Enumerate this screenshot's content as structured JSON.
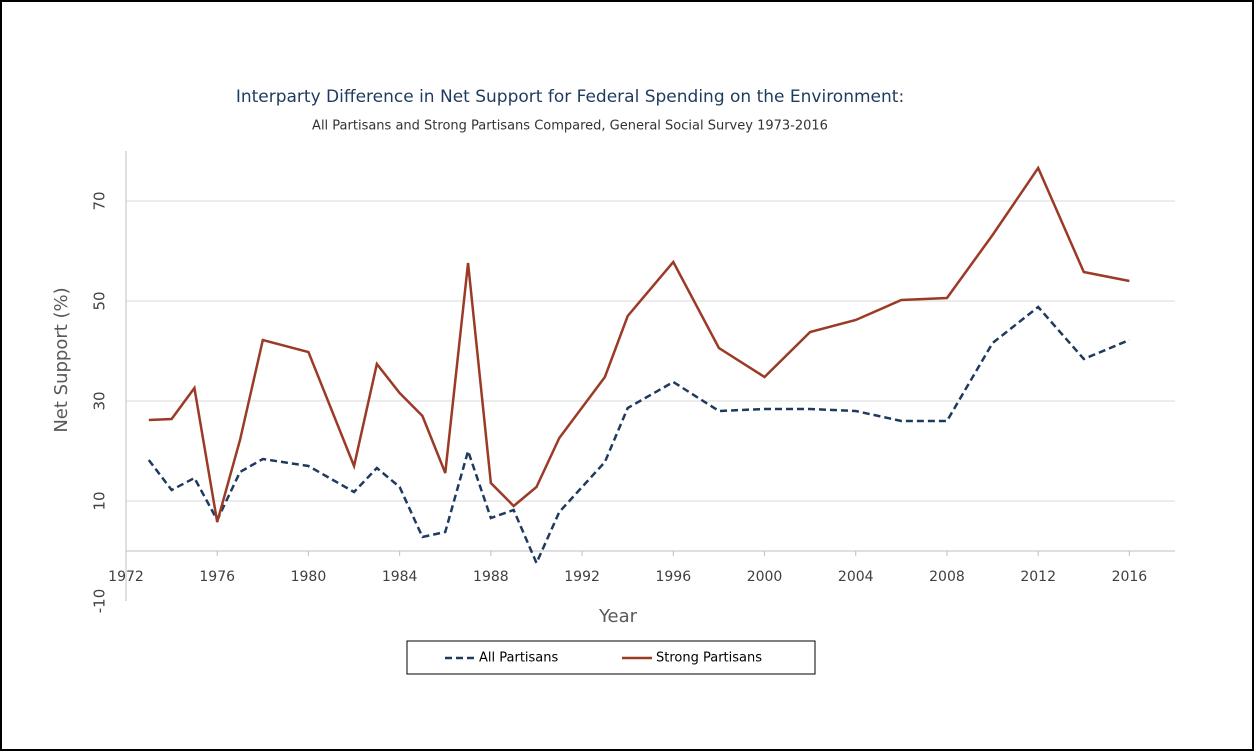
{
  "chart_data": {
    "type": "line",
    "title": "Interparty Difference in Net Support for Federal Spending on the Environment:",
    "subtitle": "All Partisans and Strong Partisans Compared, General Social Survey 1973-2016",
    "x_label": "Year",
    "y_label": "Net Support (%)",
    "x": [
      1973,
      1974,
      1975,
      1976,
      1977,
      1978,
      1980,
      1982,
      1983,
      1984,
      1985,
      1986,
      1987,
      1988,
      1989,
      1990,
      1991,
      1993,
      1994,
      1996,
      1998,
      2000,
      2002,
      2004,
      2006,
      2008,
      2010,
      2012,
      2014,
      2016
    ],
    "series": [
      {
        "name": "All Partisans",
        "color": "#1f3a5f",
        "dashed": true,
        "values": [
          18.2,
          12.2,
          14.6,
          6.2,
          15.8,
          18.4,
          17,
          11.8,
          16.6,
          12.8,
          2.8,
          3.8,
          20,
          6.6,
          8.2,
          -2.4,
          7.8,
          17.8,
          28.6,
          33.8,
          28,
          28.4,
          28.4,
          28,
          26,
          26,
          41.6,
          48.8,
          38.4,
          42.2
        ]
      },
      {
        "name": "Strong Partisans",
        "color": "#9b3a26",
        "dashed": false,
        "values": [
          26.2,
          26.4,
          32.6,
          5.8,
          22.2,
          42.2,
          39.8,
          17,
          37.4,
          31.6,
          27,
          15.6,
          57.6,
          13.6,
          9,
          12.8,
          22.6,
          34.8,
          47,
          57.8,
          40.6,
          34.8,
          43.8,
          46.2,
          50.2,
          50.6,
          63.2,
          76.6,
          55.8,
          54
        ]
      }
    ],
    "xlim": [
      1972,
      2018
    ],
    "xticks": [
      1972,
      1976,
      1980,
      1984,
      1988,
      1992,
      1996,
      2000,
      2004,
      2008,
      2012,
      2016
    ],
    "ylim": [
      -10,
      80
    ],
    "yticks": [
      -10,
      10,
      30,
      50,
      70
    ],
    "grid": true,
    "legend": "bottom"
  }
}
